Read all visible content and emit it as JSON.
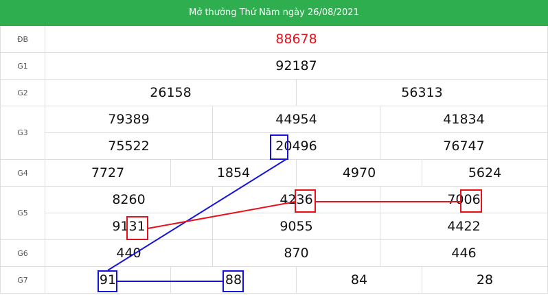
{
  "header": {
    "title": "Mở thưởng Thứ Năm ngày 26/08/2021"
  },
  "table": {
    "rows": [
      {
        "label": "ĐB",
        "lines": [
          [
            "88678"
          ]
        ]
      },
      {
        "label": "G1",
        "lines": [
          [
            "92187"
          ]
        ]
      },
      {
        "label": "G2",
        "lines": [
          [
            "26158",
            "56313"
          ]
        ]
      },
      {
        "label": "G3",
        "lines": [
          [
            "79389",
            "44954",
            "41834"
          ],
          [
            "75522",
            "20496",
            "76747"
          ]
        ]
      },
      {
        "label": "G4",
        "lines": [
          [
            "7727",
            "1854",
            "4970",
            "5624"
          ]
        ]
      },
      {
        "label": "G5",
        "lines": [
          [
            "8260",
            "4236",
            "7006"
          ],
          [
            "9131",
            "9055",
            "4422"
          ]
        ]
      },
      {
        "label": "G6",
        "lines": [
          [
            "440",
            "870",
            "446"
          ]
        ]
      },
      {
        "label": "G7",
        "lines": [
          [
            "91",
            "88",
            "84",
            "28"
          ]
        ]
      }
    ]
  }
}
